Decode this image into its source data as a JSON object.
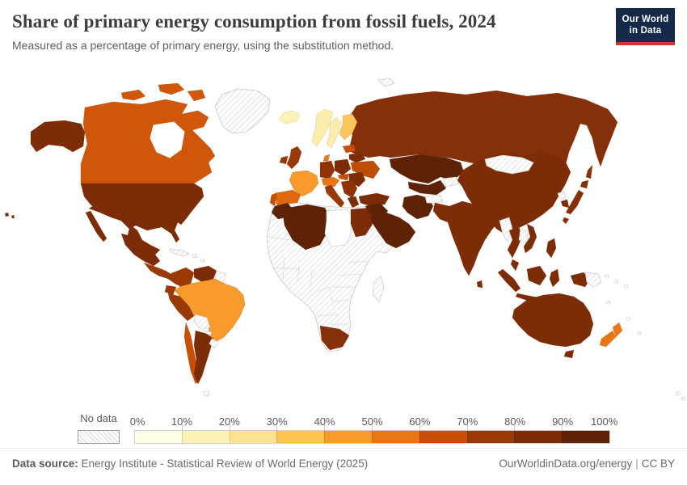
{
  "header": {
    "title": "Share of primary energy consumption from fossil fuels, 2024",
    "subtitle": "Measured as a percentage of primary energy, using the substitution method.",
    "logo": {
      "line1": "Our World",
      "line2": "in Data",
      "bg": "#15294b",
      "accent": "#c9372e"
    }
  },
  "legend": {
    "no_data_label": "No data",
    "ticks": [
      "0%",
      "10%",
      "20%",
      "30%",
      "40%",
      "50%",
      "60%",
      "70%",
      "80%",
      "90%",
      "100%"
    ],
    "colors": [
      "#fffde5",
      "#fbf2b6",
      "#fce18f",
      "#fdc452",
      "#f99b2a",
      "#e87614",
      "#c74e04",
      "#993a06",
      "#7c2c06",
      "#5e2306"
    ]
  },
  "footer": {
    "datasource_label": "Data source:",
    "datasource_text": "Energy Institute - Statistical Review of World Energy (2025)",
    "url": "OurWorldinData.org/energy",
    "separator": "|",
    "license": "CC BY"
  },
  "map": {
    "ocean_color": "#ffffff",
    "no_data_pattern": "diagonal-gray-hatch",
    "fills": {
      "no_data": "url(#hatch)",
      "libya": "#ffffff",
      "canada": "#d0560a",
      "usa": "#7c2c06",
      "mexico": "#7c2c06",
      "central_america": "#993a06",
      "colombia": "#993a06",
      "venezuela": "#7c2c06",
      "ecuador": "#993a06",
      "peru": "#993a06",
      "brazil": "#f99b2a",
      "chile": "#c74e04",
      "argentina": "#7c2c06",
      "iceland": "#fbf2b6",
      "norway": "#fcedaa",
      "sweden": "#fcedaa",
      "finland": "#fdc55e",
      "denmark": "#e87614",
      "uk": "#993a06",
      "ireland": "#993a06",
      "france": "#f99b2a",
      "spain": "#e0690f",
      "portugal": "#c74e04",
      "germany": "#8f3305",
      "central_europe": "#e87614",
      "italy": "#993a06",
      "poland": "#7c2c06",
      "baltics": "#c74e04",
      "belarus": "#7c2c06",
      "ukraine": "#bf4d08",
      "hungary": "#c74e04",
      "romania": "#7c2c06",
      "balkans": "#8f3305",
      "greece": "#7c2c06",
      "russia": "#86300a",
      "turkey": "#7c2c06",
      "iraq_syria": "#5e2306",
      "arabia": "#5e2306",
      "iran": "#5e2306",
      "kazakhstan": "#5e2306",
      "uzbek_turkmen": "#5e2306",
      "china": "#7c2c06",
      "south_korea": "#7c2c06",
      "japan": "#86300a",
      "india": "#7c2c06",
      "sri_lanka": "#7c2c06",
      "pakistan": "#7c2c06",
      "thailand": "#7c2c06",
      "vietnam": "#7c2c06",
      "indonesia": "#7c2c06",
      "philippines": "#7c2c06",
      "morocco": "#5e2306",
      "algeria": "#5e2306",
      "egypt": "#7c2c06",
      "south_africa": "#86300a",
      "australia": "#7c2c06",
      "new_zealand": "#e87614"
    }
  },
  "chart_data": {
    "type": "heatmap",
    "subtype": "world-choropleth",
    "title": "Share of primary energy consumption from fossil fuels, 2024",
    "unit": "%",
    "year": "2024",
    "legend_bins": [
      {
        "range": "0-10%",
        "color": "#fffde5"
      },
      {
        "range": "10-20%",
        "color": "#fbf2b6"
      },
      {
        "range": "20-30%",
        "color": "#fce18f"
      },
      {
        "range": "30-40%",
        "color": "#fdc452"
      },
      {
        "range": "40-50%",
        "color": "#f99b2a"
      },
      {
        "range": "50-60%",
        "color": "#e87614"
      },
      {
        "range": "60-70%",
        "color": "#c74e04"
      },
      {
        "range": "70-80%",
        "color": "#993a06"
      },
      {
        "range": "80-90%",
        "color": "#7c2c06"
      },
      {
        "range": "90-100%",
        "color": "#5e2306"
      }
    ],
    "regions": [
      {
        "name": "Canada",
        "share": "60-70%"
      },
      {
        "name": "United States",
        "share": "80-90%"
      },
      {
        "name": "Mexico",
        "share": "80-90%"
      },
      {
        "name": "Central America",
        "share": "70-80%"
      },
      {
        "name": "Colombia",
        "share": "70-80%"
      },
      {
        "name": "Venezuela",
        "share": "80-90%"
      },
      {
        "name": "Ecuador",
        "share": "70-80%"
      },
      {
        "name": "Peru",
        "share": "70-80%"
      },
      {
        "name": "Brazil",
        "share": "40-50%"
      },
      {
        "name": "Chile",
        "share": "60-70%"
      },
      {
        "name": "Argentina",
        "share": "80-90%"
      },
      {
        "name": "Iceland",
        "share": "10-20%"
      },
      {
        "name": "Norway",
        "share": "20-30%"
      },
      {
        "name": "Sweden",
        "share": "20-30%"
      },
      {
        "name": "Finland",
        "share": "30-40%"
      },
      {
        "name": "Denmark",
        "share": "50-60%"
      },
      {
        "name": "United Kingdom",
        "share": "70-80%"
      },
      {
        "name": "Ireland",
        "share": "70-80%"
      },
      {
        "name": "France",
        "share": "40-50%"
      },
      {
        "name": "Spain",
        "share": "50-60%"
      },
      {
        "name": "Portugal",
        "share": "60-70%"
      },
      {
        "name": "Germany",
        "share": "70-80%"
      },
      {
        "name": "Switzerland, Austria & Czechia",
        "share": "50-60%"
      },
      {
        "name": "Italy",
        "share": "70-80%"
      },
      {
        "name": "Poland",
        "share": "80-90%"
      },
      {
        "name": "Baltic states",
        "share": "60-70%"
      },
      {
        "name": "Belarus",
        "share": "80-90%"
      },
      {
        "name": "Ukraine",
        "share": "60-70%"
      },
      {
        "name": "Hungary",
        "share": "60-70%"
      },
      {
        "name": "Romania",
        "share": "80-90%"
      },
      {
        "name": "Balkans",
        "share": "70-80%"
      },
      {
        "name": "Greece",
        "share": "80-90%"
      },
      {
        "name": "Russia",
        "share": "80-90%"
      },
      {
        "name": "Turkey",
        "share": "80-90%"
      },
      {
        "name": "Iraq & Syria",
        "share": "90-100%"
      },
      {
        "name": "Saudi Arabia & Gulf states",
        "share": "90-100%"
      },
      {
        "name": "Iran",
        "share": "90-100%"
      },
      {
        "name": "Kazakhstan",
        "share": "90-100%"
      },
      {
        "name": "Uzbekistan & Turkmenistan",
        "share": "90-100%"
      },
      {
        "name": "China",
        "share": "80-90%"
      },
      {
        "name": "South Korea",
        "share": "80-90%"
      },
      {
        "name": "Japan",
        "share": "80-90%"
      },
      {
        "name": "India",
        "share": "80-90%"
      },
      {
        "name": "Sri Lanka",
        "share": "80-90%"
      },
      {
        "name": "Pakistan",
        "share": "80-90%"
      },
      {
        "name": "Thailand",
        "share": "80-90%"
      },
      {
        "name": "Vietnam",
        "share": "80-90%"
      },
      {
        "name": "Indonesia",
        "share": "80-90%"
      },
      {
        "name": "Philippines",
        "share": "80-90%"
      },
      {
        "name": "Morocco",
        "share": "90-100%"
      },
      {
        "name": "Algeria",
        "share": "90-100%"
      },
      {
        "name": "Egypt",
        "share": "80-90%"
      },
      {
        "name": "South Africa",
        "share": "80-90%"
      },
      {
        "name": "Australia",
        "share": "80-90%"
      },
      {
        "name": "New Zealand",
        "share": "50-60%"
      }
    ],
    "no_data_regions": [
      "Greenland",
      "Most of Sub-Saharan Africa",
      "Libya",
      "Tunisia",
      "Bolivia",
      "Paraguay",
      "Uruguay",
      "Cuba & Caribbean",
      "Mongolia",
      "North Korea",
      "Afghanistan",
      "Kyrgyzstan & Tajikistan",
      "Myanmar",
      "Laos & Cambodia",
      "Papua New Guinea",
      "Madagascar"
    ]
  }
}
